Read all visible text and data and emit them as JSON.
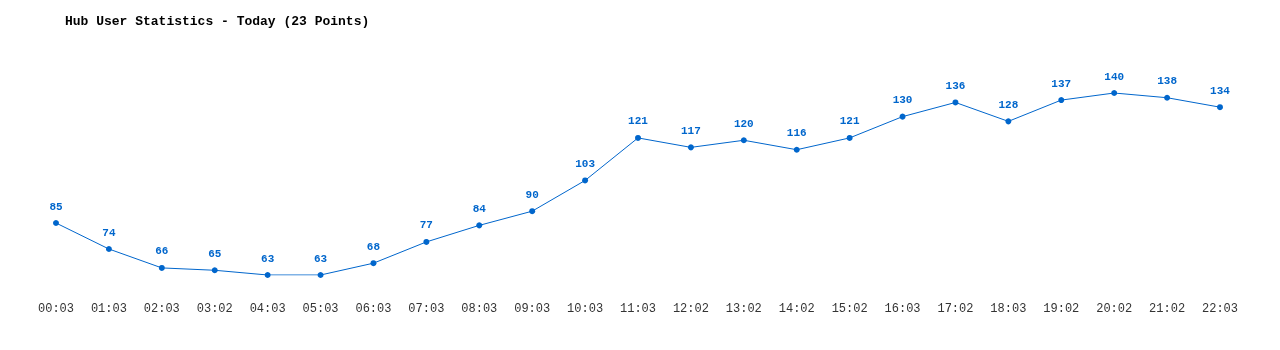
{
  "chart_data": {
    "type": "line",
    "title": "Hub User Statistics - Today (23 Points)",
    "categories": [
      "00:03",
      "01:03",
      "02:03",
      "03:02",
      "04:03",
      "05:03",
      "06:03",
      "07:03",
      "08:03",
      "09:03",
      "10:03",
      "11:03",
      "12:02",
      "13:02",
      "14:02",
      "15:02",
      "16:03",
      "17:02",
      "18:03",
      "19:02",
      "20:02",
      "21:02",
      "22:03"
    ],
    "series": [
      {
        "color": "#0066cc",
        "values": [
          85,
          74,
          66,
          65,
          63,
          63,
          68,
          77,
          84,
          90,
          103,
          121,
          117,
          120,
          116,
          121,
          130,
          136,
          128,
          137,
          140,
          138,
          134
        ]
      }
    ],
    "tick_labels": "x",
    "data_labels": true,
    "marker": "circle",
    "grid": false
  }
}
